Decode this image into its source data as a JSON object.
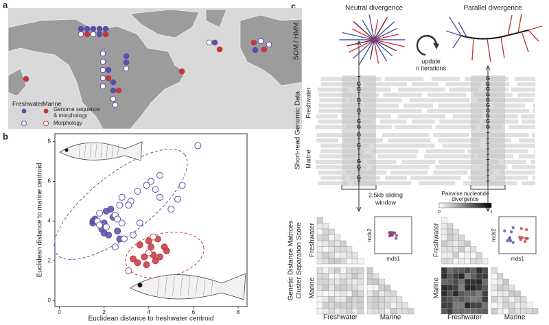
{
  "panel_labels": [
    "a",
    "b",
    "c"
  ],
  "map": {
    "legend": {
      "freshwater": "Freshwater",
      "marine": "Marine",
      "filled": [
        "Genome sequence",
        "& morphology"
      ],
      "open": "Morphology"
    }
  },
  "chart_data": {
    "type": "scatter",
    "xlabel": "Euclidean distance to freshwater centroid",
    "ylabel": "Euclidean distance to marine centroid",
    "xlim": [
      -0.2,
      8.4
    ],
    "ylim": [
      -0.3,
      8.4
    ],
    "xticks": [
      0,
      2,
      4,
      6,
      8
    ],
    "yticks": [
      0,
      2,
      4,
      6,
      8
    ],
    "series": [
      {
        "color": "#5b4fa8",
        "marker": "filled",
        "x": [
          1.5,
          1.6,
          1.5,
          2.1,
          2.3,
          2.4,
          1.9,
          2.0,
          2.2,
          2.6,
          2.7,
          2.0
        ],
        "values": [
          4.0,
          4.1,
          3.9,
          4.5,
          4.6,
          4.2,
          3.6,
          3.4,
          3.3,
          3.5,
          3.1,
          3.9
        ]
      },
      {
        "color": "#5b4fa8",
        "marker": "open",
        "x": [
          6.2,
          4.5,
          4.1,
          3.9,
          4.3,
          3.5,
          3.2,
          2.8,
          3.1,
          2.7,
          2.5,
          1.8,
          2.6,
          1.7,
          1.8,
          2.1,
          2.8,
          3.3,
          2.9,
          5.5,
          5.3,
          4.5,
          2.5,
          3.6,
          5.0
        ],
        "values": [
          7.8,
          6.3,
          6.0,
          5.8,
          5.6,
          5.5,
          5.0,
          5.2,
          4.8,
          4.8,
          4.3,
          4.4,
          4.1,
          4.0,
          3.8,
          3.7,
          3.9,
          3.3,
          3.1,
          5.8,
          5.1,
          5.2,
          2.7,
          3.9,
          4.6
        ]
      },
      {
        "color": "#c0393f",
        "marker": "filled",
        "x": [
          4.0,
          3.6,
          4.1,
          4.4,
          4.7,
          4.5,
          4.2,
          3.8,
          3.3,
          4.8,
          3.9,
          3.5,
          4.3
        ],
        "values": [
          3.0,
          2.8,
          2.7,
          3.1,
          2.7,
          2.2,
          2.3,
          2.2,
          2.1,
          2.5,
          1.8,
          1.9,
          2.0
        ]
      },
      {
        "color": "#c0393f",
        "marker": "open",
        "x": [
          4.2,
          3.1,
          4.0
        ],
        "values": [
          3.2,
          1.5,
          2.4
        ]
      }
    ]
  },
  "schematic": {
    "neutral": "Neutral divergence",
    "parallel": "Parallel divergence",
    "som": "SOM / HMM",
    "update": [
      "update",
      "n iterations"
    ],
    "reads": "Short-read Genomic Data",
    "freshwater": "Freshwater",
    "marine": "Marine",
    "left_bases": [
      "T",
      "G",
      "G",
      "T",
      "G",
      "T",
      "G",
      "T",
      "G",
      "G",
      "G",
      "T",
      "G",
      "T",
      "T",
      "G",
      "G",
      "T",
      "G",
      "T"
    ],
    "right_bases": [
      "G",
      "G",
      "G",
      "G",
      "G",
      "G",
      "G",
      "G",
      "G",
      "G",
      "T",
      "T",
      "T",
      "T",
      "T",
      "T",
      "T",
      "T",
      "T",
      "T"
    ],
    "window": [
      "2.5kb sliding",
      "window"
    ],
    "scale_title": [
      "Pairwise nucleotide",
      "divergence"
    ],
    "scale_min": "0",
    "scale_max": "1",
    "matrices": [
      "Genetic Distance Matrices",
      "Cluster Separation Score"
    ],
    "mds_y": "mds2",
    "mds_x": "mds1"
  }
}
